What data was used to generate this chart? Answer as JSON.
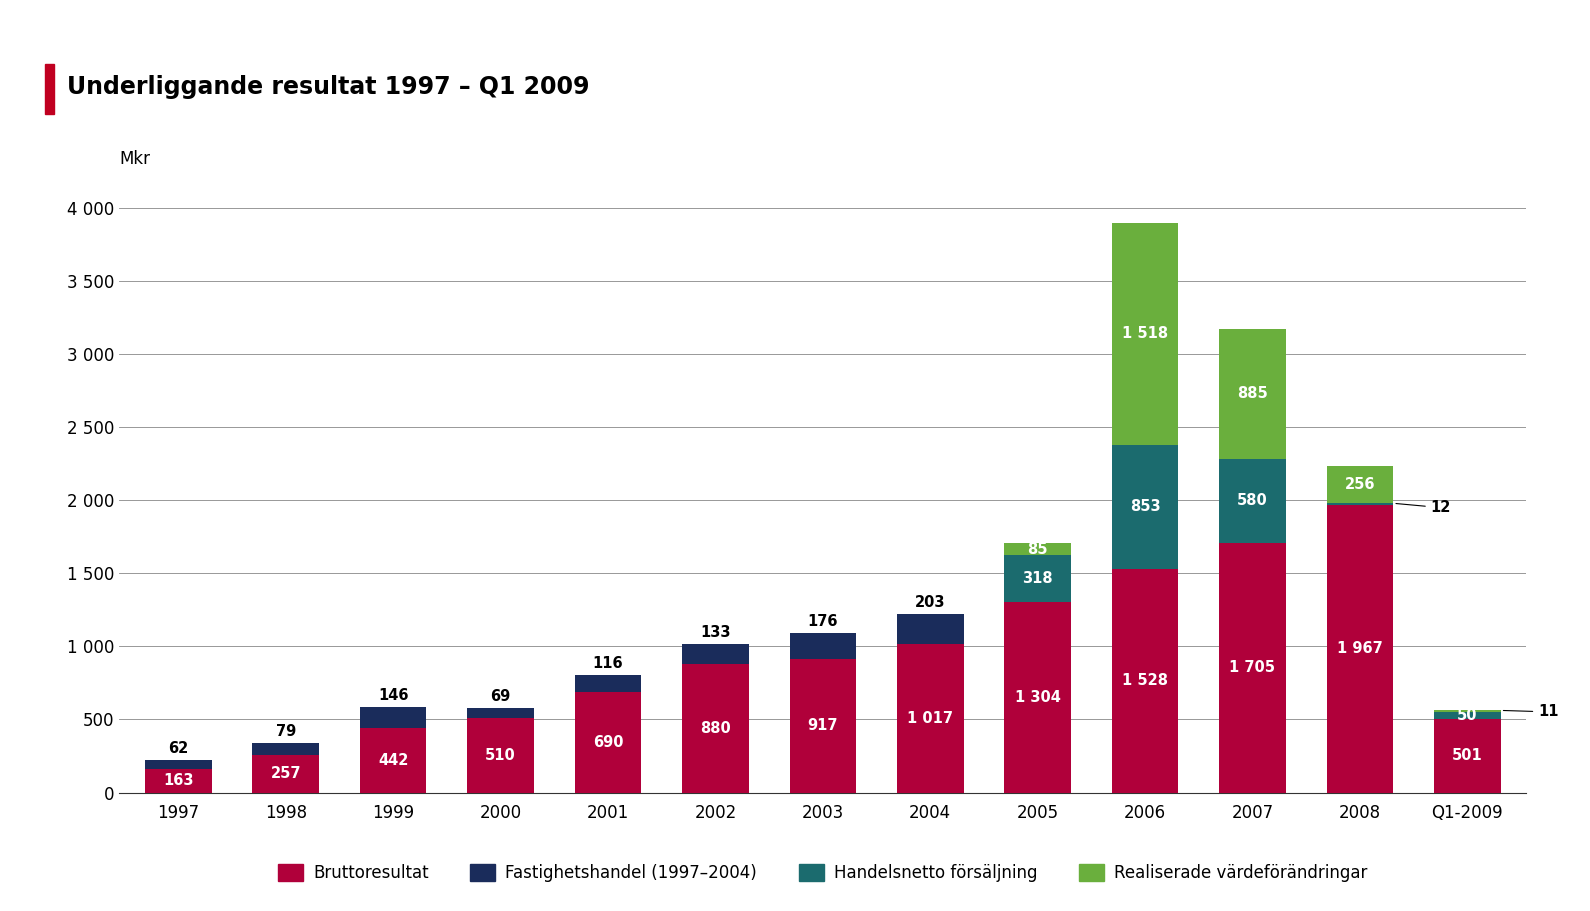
{
  "categories": [
    "1997",
    "1998",
    "1999",
    "2000",
    "2001",
    "2002",
    "2003",
    "2004",
    "2005",
    "2006",
    "2007",
    "2008",
    "Q1-2009"
  ],
  "bruttoresultat": [
    163,
    257,
    442,
    510,
    690,
    880,
    917,
    1017,
    1304,
    1528,
    1705,
    1967,
    501
  ],
  "fastighetshandel": [
    62,
    79,
    146,
    69,
    116,
    133,
    176,
    203,
    0,
    0,
    0,
    0,
    0
  ],
  "handelsnetto": [
    0,
    0,
    0,
    0,
    0,
    0,
    0,
    0,
    318,
    853,
    580,
    12,
    50
  ],
  "realiserade": [
    0,
    0,
    0,
    0,
    0,
    0,
    0,
    0,
    85,
    1518,
    885,
    256,
    11
  ],
  "color_brutto": "#B0003A",
  "color_fastighets": "#1A2C5B",
  "color_handels": "#1B6B6E",
  "color_realiserade": "#6AAF3D",
  "title": "Underliggande resultat 1997 – Q1 2009",
  "ylabel": "Mkr",
  "ylim_max": 4300,
  "background_color": "#FFFFFF",
  "title_marker_color": "#C00020",
  "legend_labels": [
    "Bruttoresultat",
    "Fastighetshandel (1997–2004)",
    "Handelsnetto försäljning",
    "Realiserade värdeförändringar"
  ],
  "bar_labels_brutto": [
    "163",
    "257",
    "442",
    "510",
    "690",
    "880",
    "917",
    "1 017",
    "1 304",
    "1 528",
    "1 705",
    "1 967",
    "501"
  ],
  "bar_labels_fastighets_top": [
    "62",
    "79",
    "146",
    "69",
    "116",
    "133",
    "176",
    "203",
    "",
    "",
    "",
    "",
    ""
  ],
  "bar_labels_handels": [
    "",
    "",
    "",
    "",
    "",
    "",
    "",
    "",
    "318",
    "853",
    "580",
    "",
    "50"
  ],
  "bar_labels_realiserade": [
    "",
    "",
    "",
    "",
    "",
    "",
    "",
    "",
    "85",
    "1 518",
    "885",
    "256",
    ""
  ],
  "outside_2008_label": "12",
  "outside_q1_label": "11",
  "yticks": [
    0,
    500,
    1000,
    1500,
    2000,
    2500,
    3000,
    3500,
    4000
  ],
  "ytick_labels": [
    "0",
    "500",
    "1 000",
    "1 500",
    "2 000",
    "2 500",
    "3 000",
    "3 500",
    "4 000"
  ]
}
